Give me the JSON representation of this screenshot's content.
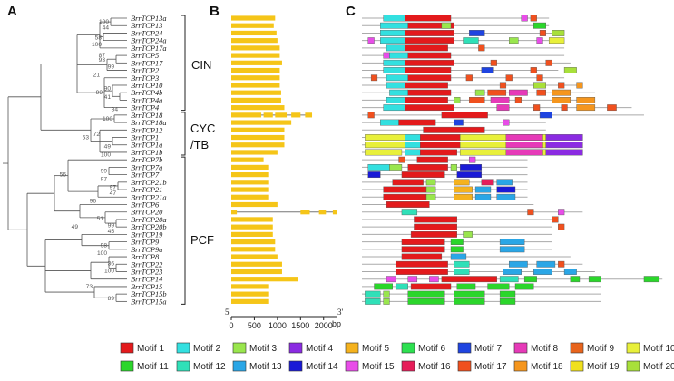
{
  "panels": {
    "a": "A",
    "b": "B",
    "c": "C"
  },
  "genes": [
    "BrrTCP13a",
    "BrrTCP13",
    "BrrTCP24",
    "BrrTCP24a",
    "BrrTCP17a",
    "BrrTCP5",
    "BrrTCP17",
    "BrrTCP2",
    "BrrTCP3",
    "BrrTCP10",
    "BrrTCP4b",
    "BrrTCP4a",
    "BrrTCP4",
    "BrrTCP18",
    "BrrTCP18a",
    "BrrTCP12",
    "BrrTCP1",
    "BrrTCP1a",
    "BrrTCP1b",
    "BrrTCP7b",
    "BrrTCP7a",
    "BrrTCP7",
    "BrrTCP21b",
    "BrrTCP21",
    "BrrTCP21a",
    "BrrTCP6",
    "BrrTCP20",
    "BrrTCP20a",
    "BrrTCP20b",
    "BrrTCP19",
    "BrrTCP9",
    "BrrTCP9a",
    "BrrTCP8",
    "BrrTCP22",
    "BrrTCP23",
    "BrrTCP14",
    "BrrTCP15",
    "BrrTCP15b",
    "BrrTCP15a"
  ],
  "bootstrap": [
    {
      "label": "100",
      "row": 0.5
    },
    {
      "label": "44",
      "row": 1.3
    },
    {
      "label": "58",
      "row": 2.6
    },
    {
      "label": "100",
      "row": 3.5
    },
    {
      "label": "87",
      "row": 5.0
    },
    {
      "label": "93",
      "row": 5.6
    },
    {
      "label": "99",
      "row": 6.5
    },
    {
      "label": "21",
      "row": 7.6
    },
    {
      "label": "90",
      "row": 9.4
    },
    {
      "label": "41",
      "row": 10.6
    },
    {
      "label": "84",
      "row": 12.2
    },
    {
      "label": "99",
      "row": 10.0
    },
    {
      "label": "100",
      "row": 13.5
    },
    {
      "label": "72",
      "row": 15.6
    },
    {
      "label": "49",
      "row": 17.2
    },
    {
      "label": "100",
      "row": 18.3
    },
    {
      "label": "63",
      "row": 16.0
    },
    {
      "label": "99",
      "row": 20.5
    },
    {
      "label": "97",
      "row": 21.6
    },
    {
      "label": "97",
      "row": 22.7
    },
    {
      "label": "47",
      "row": 23.5
    },
    {
      "label": "96",
      "row": 24.5
    },
    {
      "label": "56",
      "row": 21.0
    },
    {
      "label": "51",
      "row": 26.9
    },
    {
      "label": "99",
      "row": 27.8
    },
    {
      "label": "45",
      "row": 28.6
    },
    {
      "label": "49",
      "row": 28.0
    },
    {
      "label": "98",
      "row": 30.5
    },
    {
      "label": "100",
      "row": 31.5
    },
    {
      "label": "36",
      "row": 32.9
    },
    {
      "label": "100",
      "row": 33.9
    },
    {
      "label": "73",
      "row": 36.0
    },
    {
      "label": "89",
      "row": 37.6
    }
  ],
  "clades": {
    "cin": "CIN",
    "cyc_line1": "CYC",
    "cyc_line2": "/TB",
    "pcf": "PCF"
  },
  "gene_structure": {
    "five_prime": "5'",
    "three_prime": "3'",
    "ticks": [
      "0",
      "500",
      "1000",
      "1500",
      "2000"
    ],
    "unit": "bp",
    "lengths_bp": [
      950,
      920,
      980,
      1000,
      1050,
      1050,
      1100,
      1050,
      1050,
      1050,
      1080,
      1080,
      1150,
      1750,
      1300,
      1150,
      1150,
      1150,
      1000,
      700,
      800,
      800,
      800,
      800,
      800,
      1000,
      2300,
      900,
      900,
      900,
      950,
      950,
      1000,
      1100,
      1100,
      1450,
      800,
      800,
      800
    ],
    "gene_color": "#f5c518",
    "intron_color": "#777777"
  },
  "legend": [
    {
      "label": "Motif 1",
      "color": "#e31a1c"
    },
    {
      "label": "Motif 2",
      "color": "#33e0e0"
    },
    {
      "label": "Motif 3",
      "color": "#99e64d"
    },
    {
      "label": "Motif 4",
      "color": "#8b2be2"
    },
    {
      "label": "Motif 5",
      "color": "#f5b21e"
    },
    {
      "label": "Motif 6",
      "color": "#2de050"
    },
    {
      "label": "Motif 7",
      "color": "#1f44e0"
    },
    {
      "label": "Motif 8",
      "color": "#e63ab8"
    },
    {
      "label": "Motif 9",
      "color": "#e8641c"
    },
    {
      "label": "Motif 10",
      "color": "#e8f03a"
    },
    {
      "label": "Motif 11",
      "color": "#2bd62b"
    },
    {
      "label": "Motif 12",
      "color": "#2fe0b8"
    },
    {
      "label": "Motif 13",
      "color": "#2aa6e6"
    },
    {
      "label": "Motif 14",
      "color": "#1a1ad6"
    },
    {
      "label": "Motif 15",
      "color": "#e84de8"
    },
    {
      "label": "Motif 16",
      "color": "#e61e5a"
    },
    {
      "label": "Motif 17",
      "color": "#f0501e"
    },
    {
      "label": "Motif 18",
      "color": "#f5961e"
    },
    {
      "label": "Motif 19",
      "color": "#f0e01e"
    },
    {
      "label": "Motif 20",
      "color": "#a8e03a"
    }
  ],
  "motifs": {
    "line_lengths": [
      0.61,
      0.61,
      0.64,
      0.64,
      0.66,
      0.66,
      0.68,
      0.64,
      0.66,
      0.7,
      0.76,
      0.76,
      0.88,
      0.92,
      0.6,
      0.6,
      0.72,
      0.72,
      0.72,
      0.54,
      0.54,
      0.54,
      0.54,
      0.54,
      0.54,
      0.56,
      0.72,
      0.62,
      0.62,
      0.62,
      0.62,
      0.62,
      0.68,
      0.72,
      0.76,
      0.98,
      0.78,
      0.78,
      0.78
    ],
    "rows": [
      [
        [
          2,
          0.07,
          0.07
        ],
        [
          1,
          0.14,
          0.15
        ],
        [
          15,
          0.52,
          0.02
        ],
        [
          17,
          0.55,
          0.02
        ]
      ],
      [
        [
          2,
          0.06,
          0.09
        ],
        [
          1,
          0.15,
          0.15
        ],
        [
          3,
          0.26,
          0.03
        ],
        [
          11,
          0.56,
          0.04
        ]
      ],
      [
        [
          2,
          0.06,
          0.08
        ],
        [
          1,
          0.14,
          0.16
        ],
        [
          7,
          0.35,
          0.05
        ],
        [
          17,
          0.58,
          0.02
        ],
        [
          20,
          0.62,
          0.04
        ]
      ],
      [
        [
          15,
          0.02,
          0.02
        ],
        [
          2,
          0.06,
          0.08
        ],
        [
          1,
          0.14,
          0.16
        ],
        [
          12,
          0.33,
          0.05
        ],
        [
          3,
          0.48,
          0.03
        ],
        [
          15,
          0.57,
          0.02
        ],
        [
          10,
          0.61,
          0.05
        ]
      ],
      [
        [
          2,
          0.08,
          0.06
        ],
        [
          1,
          0.14,
          0.14
        ],
        [
          17,
          0.38,
          0.02
        ]
      ],
      [
        [
          15,
          0.07,
          0.02
        ],
        [
          2,
          0.09,
          0.06
        ],
        [
          1,
          0.15,
          0.14
        ]
      ],
      [
        [
          2,
          0.07,
          0.07
        ],
        [
          1,
          0.14,
          0.16
        ],
        [
          17,
          0.42,
          0.02
        ],
        [
          17,
          0.6,
          0.02
        ]
      ],
      [
        [
          2,
          0.07,
          0.07
        ],
        [
          1,
          0.14,
          0.15
        ],
        [
          7,
          0.39,
          0.04
        ],
        [
          17,
          0.55,
          0.02
        ],
        [
          20,
          0.66,
          0.04
        ]
      ],
      [
        [
          17,
          0.03,
          0.02
        ],
        [
          2,
          0.08,
          0.07
        ],
        [
          1,
          0.15,
          0.14
        ],
        [
          17,
          0.34,
          0.02
        ],
        [
          17,
          0.47,
          0.02
        ],
        [
          17,
          0.57,
          0.02
        ]
      ],
      [
        [
          2,
          0.08,
          0.06
        ],
        [
          1,
          0.14,
          0.14
        ],
        [
          17,
          0.45,
          0.02
        ],
        [
          20,
          0.56,
          0.04
        ],
        [
          17,
          0.64,
          0.02
        ],
        [
          18,
          0.7,
          0.02
        ]
      ],
      [
        [
          2,
          0.09,
          0.06
        ],
        [
          1,
          0.15,
          0.14
        ],
        [
          3,
          0.37,
          0.03
        ],
        [
          17,
          0.41,
          0.06
        ],
        [
          8,
          0.48,
          0.06
        ],
        [
          17,
          0.57,
          0.03
        ],
        [
          18,
          0.62,
          0.06
        ]
      ],
      [
        [
          2,
          0.08,
          0.06
        ],
        [
          1,
          0.14,
          0.14
        ],
        [
          3,
          0.3,
          0.02
        ],
        [
          17,
          0.35,
          0.05
        ],
        [
          8,
          0.42,
          0.06
        ],
        [
          17,
          0.5,
          0.02
        ],
        [
          18,
          0.62,
          0.06
        ],
        [
          18,
          0.7,
          0.06
        ]
      ],
      [
        [
          2,
          0.07,
          0.07
        ],
        [
          1,
          0.14,
          0.16
        ],
        [
          8,
          0.44,
          0.04
        ],
        [
          17,
          0.56,
          0.02
        ],
        [
          17,
          0.65,
          0.02
        ],
        [
          18,
          0.7,
          0.06
        ],
        [
          17,
          0.8,
          0.03
        ]
      ],
      [
        [
          17,
          0.02,
          0.02
        ],
        [
          1,
          0.26,
          0.15
        ],
        [
          7,
          0.58,
          0.04
        ]
      ],
      [
        [
          2,
          0.06,
          0.06
        ],
        [
          1,
          0.12,
          0.12
        ],
        [
          7,
          0.3,
          0.03
        ],
        [
          15,
          0.46,
          0.02
        ]
      ],
      [
        [
          1,
          0.2,
          0.2
        ]
      ],
      [
        [
          10,
          0.01,
          0.13
        ],
        [
          2,
          0.14,
          0.05
        ],
        [
          1,
          0.19,
          0.13
        ],
        [
          10,
          0.32,
          0.28
        ],
        [
          8,
          0.47,
          0.12
        ],
        [
          4,
          0.6,
          0.12
        ]
      ],
      [
        [
          10,
          0.01,
          0.13
        ],
        [
          2,
          0.14,
          0.05
        ],
        [
          1,
          0.19,
          0.13
        ],
        [
          10,
          0.32,
          0.28
        ],
        [
          8,
          0.47,
          0.12
        ],
        [
          4,
          0.6,
          0.12
        ]
      ],
      [
        [
          10,
          0.01,
          0.12
        ],
        [
          2,
          0.14,
          0.05
        ],
        [
          1,
          0.19,
          0.12
        ],
        [
          10,
          0.32,
          0.28
        ],
        [
          8,
          0.47,
          0.12
        ],
        [
          4,
          0.6,
          0.12
        ]
      ],
      [
        [
          17,
          0.12,
          0.02
        ],
        [
          1,
          0.18,
          0.1
        ],
        [
          15,
          0.35,
          0.02
        ]
      ],
      [
        [
          2,
          0.02,
          0.07
        ],
        [
          3,
          0.09,
          0.04
        ],
        [
          1,
          0.15,
          0.13
        ],
        [
          3,
          0.29,
          0.02
        ],
        [
          14,
          0.32,
          0.07
        ]
      ],
      [
        [
          14,
          0.02,
          0.04
        ],
        [
          1,
          0.13,
          0.14
        ],
        [
          14,
          0.31,
          0.08
        ]
      ],
      [
        [
          1,
          0.1,
          0.1
        ],
        [
          3,
          0.21,
          0.03
        ],
        [
          5,
          0.3,
          0.05
        ],
        [
          16,
          0.39,
          0.04
        ],
        [
          13,
          0.44,
          0.05
        ]
      ],
      [
        [
          1,
          0.07,
          0.14
        ],
        [
          3,
          0.21,
          0.03
        ],
        [
          5,
          0.3,
          0.06
        ],
        [
          13,
          0.37,
          0.05
        ],
        [
          14,
          0.44,
          0.06
        ]
      ],
      [
        [
          1,
          0.07,
          0.14
        ],
        [
          3,
          0.21,
          0.03
        ],
        [
          5,
          0.3,
          0.06
        ],
        [
          13,
          0.37,
          0.05
        ],
        [
          13,
          0.44,
          0.06
        ]
      ],
      [
        [
          1,
          0.08,
          0.14
        ]
      ],
      [
        [
          12,
          0.13,
          0.05
        ],
        [
          17,
          0.54,
          0.02
        ],
        [
          15,
          0.64,
          0.02
        ]
      ],
      [
        [
          1,
          0.17,
          0.14
        ],
        [
          17,
          0.62,
          0.02
        ]
      ],
      [
        [
          1,
          0.17,
          0.14
        ],
        [
          17,
          0.64,
          0.02
        ]
      ],
      [
        [
          1,
          0.16,
          0.15
        ],
        [
          3,
          0.33,
          0.03
        ]
      ],
      [
        [
          1,
          0.13,
          0.14
        ],
        [
          11,
          0.29,
          0.04
        ],
        [
          13,
          0.45,
          0.08
        ]
      ],
      [
        [
          1,
          0.13,
          0.14
        ],
        [
          11,
          0.29,
          0.04
        ],
        [
          13,
          0.45,
          0.08
        ]
      ],
      [
        [
          1,
          0.13,
          0.13
        ],
        [
          13,
          0.29,
          0.05
        ]
      ],
      [
        [
          1,
          0.11,
          0.17
        ],
        [
          12,
          0.3,
          0.05
        ],
        [
          13,
          0.48,
          0.06
        ],
        [
          13,
          0.57,
          0.06
        ],
        [
          17,
          0.64,
          0.02
        ]
      ],
      [
        [
          1,
          0.11,
          0.17
        ],
        [
          12,
          0.3,
          0.05
        ],
        [
          13,
          0.46,
          0.06
        ],
        [
          13,
          0.56,
          0.06
        ],
        [
          13,
          0.66,
          0.04
        ]
      ],
      [
        [
          15,
          0.08,
          0.03
        ],
        [
          15,
          0.15,
          0.03
        ],
        [
          15,
          0.22,
          0.03
        ],
        [
          1,
          0.26,
          0.18
        ],
        [
          12,
          0.45,
          0.06
        ],
        [
          11,
          0.53,
          0.04
        ],
        [
          11,
          0.68,
          0.03
        ],
        [
          11,
          0.74,
          0.04
        ],
        [
          11,
          0.92,
          0.05
        ]
      ],
      [
        [
          11,
          0.04,
          0.06
        ],
        [
          12,
          0.11,
          0.04
        ],
        [
          1,
          0.16,
          0.13
        ],
        [
          11,
          0.31,
          0.06
        ],
        [
          11,
          0.41,
          0.07
        ],
        [
          11,
          0.5,
          0.06
        ]
      ],
      [
        [
          12,
          0.01,
          0.05
        ],
        [
          3,
          0.07,
          0.02
        ],
        [
          11,
          0.15,
          0.12
        ],
        [
          11,
          0.3,
          0.1
        ],
        [
          11,
          0.45,
          0.05
        ]
      ],
      [
        [
          12,
          0.01,
          0.05
        ],
        [
          3,
          0.07,
          0.02
        ],
        [
          11,
          0.15,
          0.12
        ],
        [
          11,
          0.3,
          0.1
        ],
        [
          11,
          0.45,
          0.05
        ]
      ]
    ]
  }
}
